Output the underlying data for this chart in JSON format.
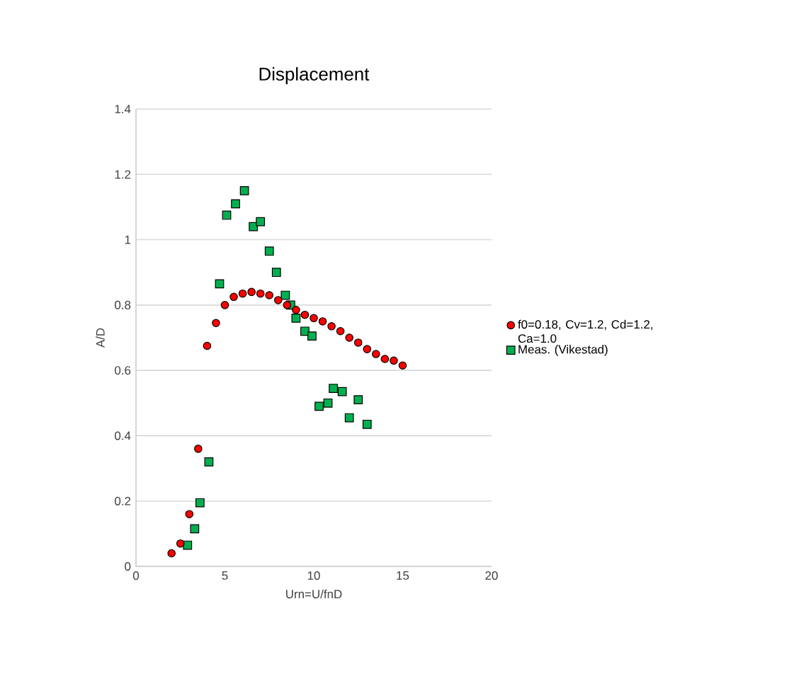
{
  "chart_data": {
    "type": "scatter",
    "title": "Displacement",
    "xlabel": "Urn=U/fnD",
    "ylabel": "A/D",
    "xlim": [
      0,
      20
    ],
    "xticks": [
      0,
      5,
      10,
      15,
      20
    ],
    "ylim": [
      0,
      1.4
    ],
    "yticks": [
      0,
      0.2,
      0.4,
      0.6,
      0.8,
      1,
      1.2,
      1.4
    ],
    "grid": "y",
    "legend": "right",
    "series": [
      {
        "name": "f0=0.18, Cv=1.2, Cd=1.2, Ca=1.0",
        "color": "#ff0000",
        "marker": "circle",
        "x": [
          2,
          2.5,
          3,
          3.5,
          4,
          4.5,
          5,
          5.5,
          6,
          6.5,
          7,
          7.5,
          8,
          8.5,
          9,
          9.5,
          10,
          10.5,
          11,
          11.5,
          12,
          12.5,
          13,
          13.5,
          14,
          14.5,
          15
        ],
        "values": [
          0.04,
          0.07,
          0.16,
          0.36,
          0.675,
          0.745,
          0.8,
          0.825,
          0.835,
          0.84,
          0.835,
          0.83,
          0.815,
          0.8,
          0.785,
          0.77,
          0.76,
          0.75,
          0.735,
          0.72,
          0.7,
          0.685,
          0.665,
          0.65,
          0.635,
          0.63,
          0.615
        ]
      },
      {
        "name": "Meas. (Vikestad)",
        "color": "#00b050",
        "marker": "square",
        "x": [
          2.9,
          3.3,
          3.6,
          4.1,
          4.7,
          5.1,
          5.6,
          6.1,
          6.6,
          7.0,
          7.5,
          7.9,
          8.4,
          8.7,
          9.0,
          9.5,
          9.9,
          10.3,
          10.8,
          11.1,
          11.6,
          12.0,
          12.5,
          13.0
        ],
        "values": [
          0.065,
          0.115,
          0.195,
          0.32,
          0.865,
          1.075,
          1.11,
          1.15,
          1.04,
          1.055,
          0.965,
          0.9,
          0.83,
          0.8,
          0.76,
          0.72,
          0.705,
          0.49,
          0.5,
          0.545,
          0.535,
          0.455,
          0.51,
          0.435
        ]
      }
    ]
  }
}
